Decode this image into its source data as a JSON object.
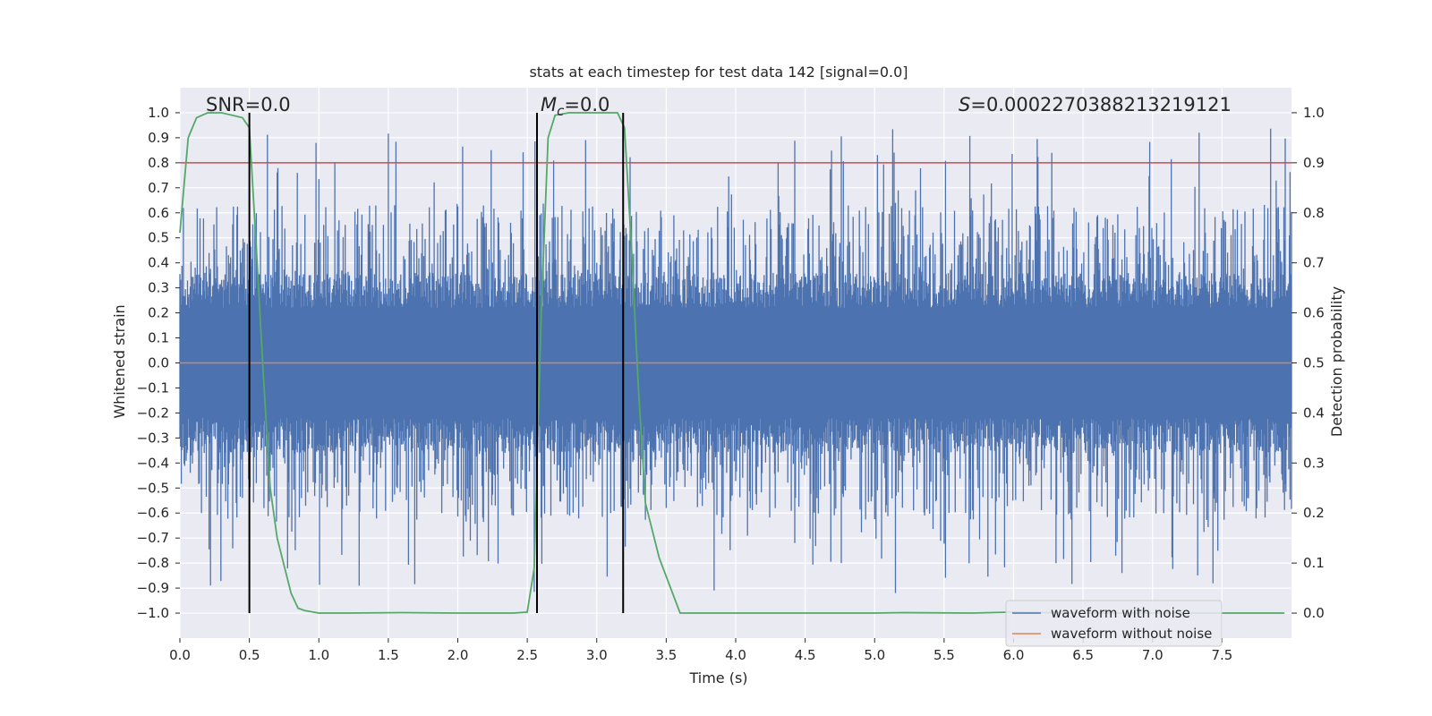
{
  "chart_data": {
    "type": "line",
    "title": "stats at each timestep for test data 142 [signal=0.0]",
    "xlabel": "Time (s)",
    "ylabel_left": "Whitened strain",
    "ylabel_right": "Detection probability",
    "xlim": [
      0.0,
      8.0
    ],
    "ylim_left": [
      -1.1,
      1.1
    ],
    "ylim_right": [
      -0.05,
      1.05
    ],
    "xticks": [
      "0.0",
      "0.5",
      "1.0",
      "1.5",
      "2.0",
      "2.5",
      "3.0",
      "3.5",
      "4.0",
      "4.5",
      "5.0",
      "5.5",
      "6.0",
      "6.5",
      "7.0",
      "7.5"
    ],
    "yticks_left": [
      "1.0",
      "0.9",
      "0.8",
      "0.7",
      "0.6",
      "0.5",
      "0.4",
      "0.3",
      "0.2",
      "0.1",
      "0.0",
      "−0.1",
      "−0.2",
      "−0.3",
      "−0.4",
      "−0.5",
      "−0.6",
      "−0.7",
      "−0.8",
      "−0.9",
      "−1.0"
    ],
    "yticks_right": [
      "1.0",
      "0.9",
      "0.8",
      "0.7",
      "0.6",
      "0.5",
      "0.4",
      "0.3",
      "0.2",
      "0.1",
      "0.0"
    ],
    "grid": true,
    "annotations": {
      "snr": "SNR=0.0",
      "mc_symbol": "M",
      "mc_sub": "c",
      "mc_value": "=0.0",
      "s_symbol": "S",
      "s_value": "=0.0002270388213219121"
    },
    "threshold_line": {
      "value_right_axis": 0.9,
      "color": "#c44e52"
    },
    "vertical_markers": [
      0.5,
      2.57,
      3.19
    ],
    "series": [
      {
        "name": "waveform with noise",
        "color": "#4c72b0",
        "description": "noise envelope approx. ±0.3, spikes up to about ±0.97"
      },
      {
        "name": "waveform without noise",
        "color": "#dd8452",
        "values_note": "flat at 0.0"
      },
      {
        "name": "detection probability",
        "color": "#55a868",
        "axis": "right",
        "x": [
          0.0,
          0.06,
          0.12,
          0.2,
          0.3,
          0.45,
          0.5,
          0.55,
          0.6,
          0.65,
          0.7,
          0.8,
          0.85,
          0.9,
          1.0,
          1.2,
          1.6,
          2.0,
          2.4,
          2.5,
          2.55,
          2.6,
          2.65,
          2.7,
          2.8,
          3.0,
          3.1,
          3.15,
          3.2,
          3.25,
          3.3,
          3.35,
          3.45,
          3.6,
          4.0,
          5.0,
          5.2,
          5.7,
          6.0,
          6.5,
          7.0,
          7.5,
          7.95
        ],
        "values": [
          0.76,
          0.95,
          0.99,
          1.0,
          1.0,
          0.99,
          0.97,
          0.73,
          0.48,
          0.25,
          0.15,
          0.04,
          0.01,
          0.005,
          0.0,
          0.0,
          0.001,
          0.0,
          0.0,
          0.002,
          0.09,
          0.6,
          0.95,
          0.995,
          1.0,
          1.0,
          1.0,
          1.0,
          0.97,
          0.73,
          0.45,
          0.22,
          0.11,
          0.0,
          0.0,
          0.0,
          0.001,
          0.0,
          0.002,
          0.0,
          0.0,
          0.0,
          0.0
        ]
      }
    ],
    "legend": {
      "position": "lower-right",
      "entries": [
        "waveform with noise",
        "waveform without noise"
      ]
    }
  }
}
